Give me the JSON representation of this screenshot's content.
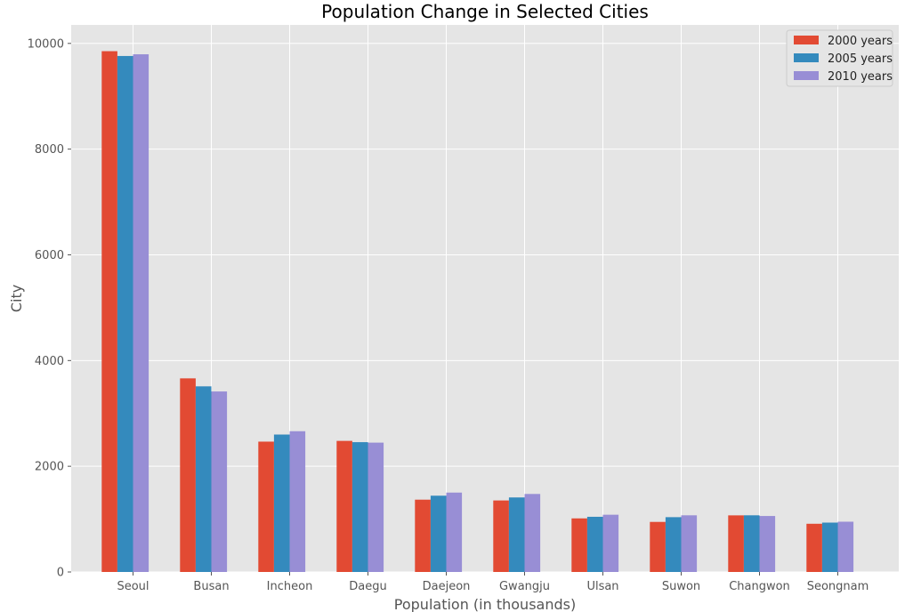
{
  "chart_data": {
    "type": "bar",
    "title": "Population Change in Selected Cities",
    "xlabel": "Population (in thousands)",
    "ylabel": "City",
    "categories": [
      "Seoul",
      "Busan",
      "Incheon",
      "Daegu",
      "Daejeon",
      "Gwangju",
      "Ulsan",
      "Suwon",
      "Changwon",
      "Seongnam"
    ],
    "series": [
      {
        "name": "2000 years",
        "color": "#E24A33",
        "values": [
          9853,
          3663,
          2466,
          2480,
          1368,
          1353,
          1014,
          947,
          1071,
          912
        ]
      },
      {
        "name": "2005 years",
        "color": "#348ABD",
        "values": [
          9762,
          3512,
          2600,
          2456,
          1443,
          1410,
          1044,
          1037,
          1072,
          934
        ]
      },
      {
        "name": "2010 years",
        "color": "#988ED5",
        "values": [
          9794,
          3415,
          2663,
          2447,
          1502,
          1476,
          1083,
          1072,
          1059,
          951
        ]
      }
    ],
    "yticks": [
      0,
      2000,
      4000,
      6000,
      8000,
      10000
    ],
    "ylim": [
      0,
      10350
    ],
    "grid": true,
    "legend_position": "top-right"
  }
}
